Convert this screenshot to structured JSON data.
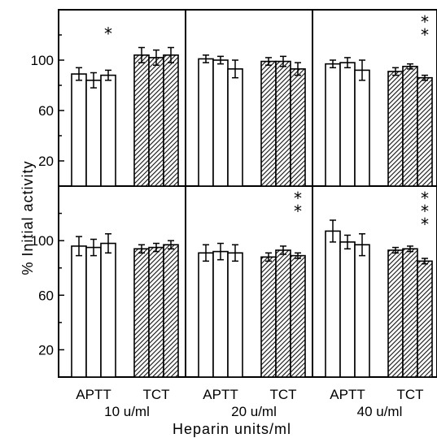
{
  "chart_data": {
    "type": "bar",
    "ylabel": "% Initial activity",
    "xlabel": "Heparin units/ml",
    "ylim": [
      0,
      140
    ],
    "yticks": [
      20,
      60,
      100
    ],
    "columns": [
      {
        "label": "10 u/ml"
      },
      {
        "label": "20 u/ml"
      },
      {
        "label": "40 u/ml"
      }
    ],
    "groups": [
      {
        "name": "APTT",
        "fill": "open"
      },
      {
        "name": "TCT",
        "fill": "hatched"
      }
    ],
    "panels": [
      {
        "row": 0,
        "col": 0,
        "APTT": {
          "values": [
            89,
            84,
            88
          ],
          "errors": [
            5,
            6,
            4
          ]
        },
        "TCT": {
          "values": [
            104,
            102,
            104
          ],
          "errors": [
            6,
            6,
            6
          ]
        },
        "significance": {
          "group": "APTT",
          "bar": 2,
          "marker": "*"
        }
      },
      {
        "row": 0,
        "col": 1,
        "APTT": {
          "values": [
            101,
            100,
            93
          ],
          "errors": [
            3,
            3,
            7
          ]
        },
        "TCT": {
          "values": [
            99,
            99,
            93
          ],
          "errors": [
            3,
            4,
            5
          ]
        },
        "significance": null
      },
      {
        "row": 0,
        "col": 2,
        "APTT": {
          "values": [
            97,
            98,
            92
          ],
          "errors": [
            3,
            4,
            8
          ]
        },
        "TCT": {
          "values": [
            91,
            95,
            86
          ],
          "errors": [
            3,
            2,
            2
          ]
        },
        "significance": {
          "group": "TCT",
          "bar": 2,
          "marker": "**"
        }
      },
      {
        "row": 1,
        "col": 0,
        "APTT": {
          "values": [
            96,
            95,
            98
          ],
          "errors": [
            7,
            6,
            7
          ]
        },
        "TCT": {
          "values": [
            94,
            95,
            97
          ],
          "errors": [
            3,
            3,
            3
          ]
        },
        "significance": null
      },
      {
        "row": 1,
        "col": 1,
        "APTT": {
          "values": [
            91,
            92,
            91
          ],
          "errors": [
            6,
            6,
            6
          ]
        },
        "TCT": {
          "values": [
            88,
            93,
            89
          ],
          "errors": [
            3,
            3,
            2
          ]
        },
        "significance": {
          "group": "TCT",
          "bar": 2,
          "marker": "**"
        }
      },
      {
        "row": 1,
        "col": 2,
        "APTT": {
          "values": [
            107,
            99,
            97
          ],
          "errors": [
            8,
            5,
            8
          ]
        },
        "TCT": {
          "values": [
            93,
            94,
            85
          ],
          "errors": [
            2,
            2,
            2
          ]
        },
        "significance": {
          "group": "TCT",
          "bar": 2,
          "marker": "***"
        }
      }
    ]
  }
}
